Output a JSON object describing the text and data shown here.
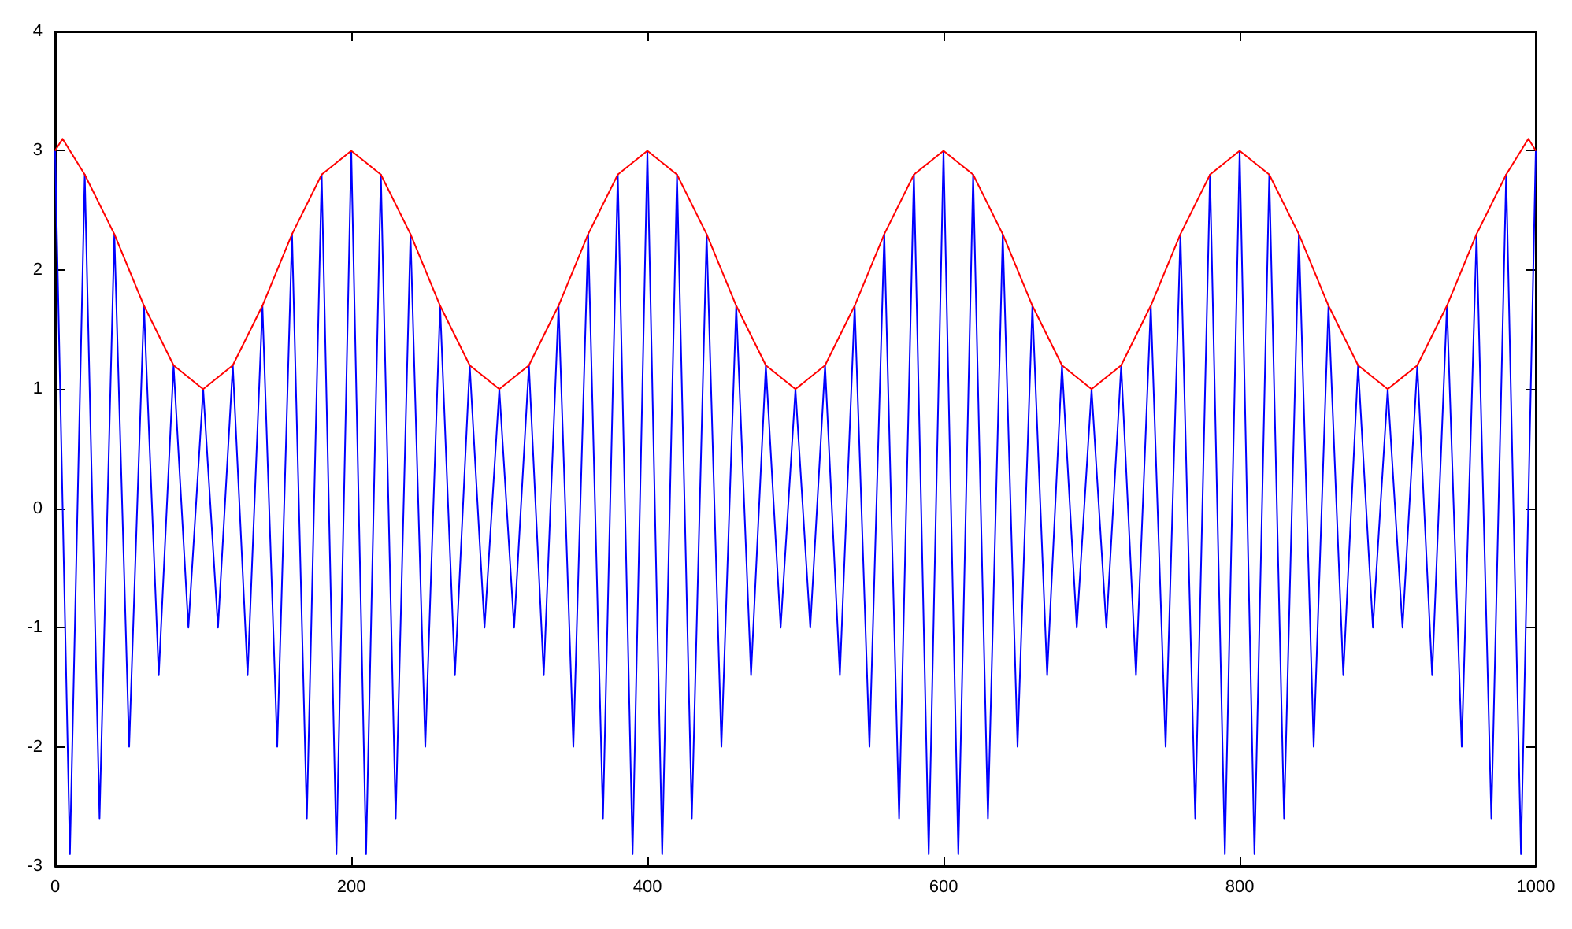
{
  "chart_data": {
    "type": "line",
    "xlim": [
      0,
      1000
    ],
    "xticks": [
      0,
      200,
      400,
      600,
      800,
      1000
    ],
    "ylim": [
      -3,
      4
    ],
    "yticks": [
      -3,
      -2,
      -1,
      0,
      1,
      2,
      3,
      4
    ],
    "grid": false,
    "marker": "none",
    "line_style": "solid",
    "series": [
      {
        "color": "#0000ff",
        "x": [
          0,
          10,
          20,
          30,
          40,
          50,
          60,
          70,
          80,
          90,
          100,
          110,
          120,
          130,
          140,
          150,
          160,
          170,
          180,
          190,
          200,
          210,
          220,
          230,
          240,
          250,
          260,
          270,
          280,
          290,
          300,
          310,
          320,
          330,
          340,
          350,
          360,
          370,
          380,
          390,
          400,
          410,
          420,
          430,
          440,
          450,
          460,
          470,
          480,
          490,
          500,
          510,
          520,
          530,
          540,
          550,
          560,
          570,
          580,
          590,
          600,
          610,
          620,
          630,
          640,
          650,
          660,
          670,
          680,
          690,
          700,
          710,
          720,
          730,
          740,
          750,
          760,
          770,
          780,
          790,
          800,
          810,
          820,
          830,
          840,
          850,
          860,
          870,
          880,
          890,
          900,
          910,
          920,
          930,
          940,
          950,
          960,
          970,
          980,
          990,
          1000
        ],
        "values": [
          3,
          -2.9,
          2.8,
          -2.6,
          2.3,
          -2,
          1.7,
          -1.4,
          1.2,
          -1,
          1,
          -1,
          1.2,
          -1.4,
          1.7,
          -2,
          2.3,
          -2.6,
          2.8,
          -2.9,
          3,
          -2.9,
          2.8,
          -2.6,
          2.3,
          -2,
          1.7,
          -1.4,
          1.2,
          -1,
          1,
          -1,
          1.2,
          -1.4,
          1.7,
          -2,
          2.3,
          -2.6,
          2.8,
          -2.9,
          3,
          -2.9,
          2.8,
          -2.6,
          2.3,
          -2,
          1.7,
          -1.4,
          1.2,
          -1,
          1,
          -1,
          1.2,
          -1.4,
          1.7,
          -2,
          2.3,
          -2.6,
          2.8,
          -2.9,
          3,
          -2.9,
          2.8,
          -2.6,
          2.3,
          -2,
          1.7,
          -1.4,
          1.2,
          -1,
          1,
          -1,
          1.2,
          -1.4,
          1.7,
          -2,
          2.3,
          -2.6,
          2.8,
          -2.9,
          3,
          -2.9,
          2.8,
          -2.6,
          2.3,
          -2,
          1.7,
          -1.4,
          1.2,
          -1,
          1,
          -1,
          1.2,
          -1.4,
          1.7,
          -2,
          2.3,
          -2.6,
          2.8,
          -2.9,
          3
        ]
      },
      {
        "color": "#ff0000",
        "x": [
          0,
          5,
          20,
          40,
          60,
          80,
          100,
          120,
          140,
          160,
          180,
          200,
          220,
          240,
          260,
          280,
          300,
          320,
          340,
          360,
          380,
          400,
          420,
          440,
          460,
          480,
          500,
          520,
          540,
          560,
          580,
          600,
          620,
          640,
          660,
          680,
          700,
          720,
          740,
          760,
          780,
          800,
          820,
          840,
          860,
          880,
          900,
          920,
          940,
          960,
          980,
          995,
          1000
        ],
        "values": [
          3,
          3.1,
          2.8,
          2.3,
          1.7,
          1.2,
          1,
          1.2,
          1.7,
          2.3,
          2.8,
          3,
          2.8,
          2.3,
          1.7,
          1.2,
          1,
          1.2,
          1.7,
          2.3,
          2.8,
          3,
          2.8,
          2.3,
          1.7,
          1.2,
          1,
          1.2,
          1.7,
          2.3,
          2.8,
          3,
          2.8,
          2.3,
          1.7,
          1.2,
          1,
          1.2,
          1.7,
          2.3,
          2.8,
          3,
          2.8,
          2.3,
          1.7,
          1.2,
          1,
          1.2,
          1.7,
          2.3,
          2.8,
          3.1,
          3
        ]
      }
    ]
  }
}
